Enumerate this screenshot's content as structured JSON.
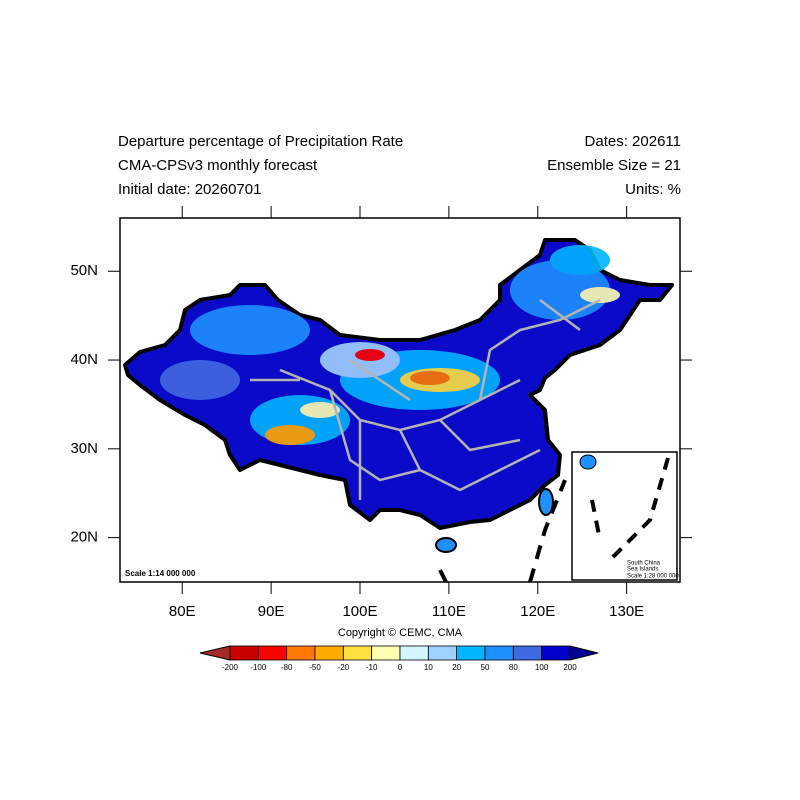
{
  "header": {
    "title": "Departure percentage of Precipitation Rate",
    "subtitle": "CMA-CPSv3 monthly forecast",
    "initial_date": "Initial date: 20260701",
    "dates": "Dates: 202611",
    "ensemble": "Ensemble Size = 21",
    "units": "Units: %"
  },
  "map": {
    "xlim": [
      73,
      136
    ],
    "ylim": [
      15,
      56
    ],
    "xticks": [
      {
        "value": 80,
        "label": "80E"
      },
      {
        "value": 90,
        "label": "90E"
      },
      {
        "value": 100,
        "label": "100E"
      },
      {
        "value": 110,
        "label": "110E"
      },
      {
        "value": 120,
        "label": "120E"
      },
      {
        "value": 130,
        "label": "130E"
      }
    ],
    "yticks": [
      {
        "value": 20,
        "label": "20N"
      },
      {
        "value": 30,
        "label": "30N"
      },
      {
        "value": 40,
        "label": "40N"
      },
      {
        "value": 50,
        "label": "50N"
      }
    ],
    "scale": "Scale 1:14 000 000",
    "inset": {
      "title_1": "South China",
      "title_2": "Sea Islands",
      "scale": "Scale 1:28 000 000"
    },
    "copyright": "Copyright © CEMC, CMA"
  },
  "colorbar": {
    "levels": [
      -200,
      -100,
      -80,
      -50,
      -20,
      -10,
      0,
      10,
      20,
      50,
      80,
      100,
      200
    ],
    "colors": [
      "#a52a2a",
      "#c80000",
      "#ff0000",
      "#ff7800",
      "#ffaa00",
      "#ffe040",
      "#ffffb4",
      "#d2f5ff",
      "#a0d2ff",
      "#00b4ff",
      "#1e90ff",
      "#4169e1",
      "#0000cd",
      "#000096"
    ]
  }
}
